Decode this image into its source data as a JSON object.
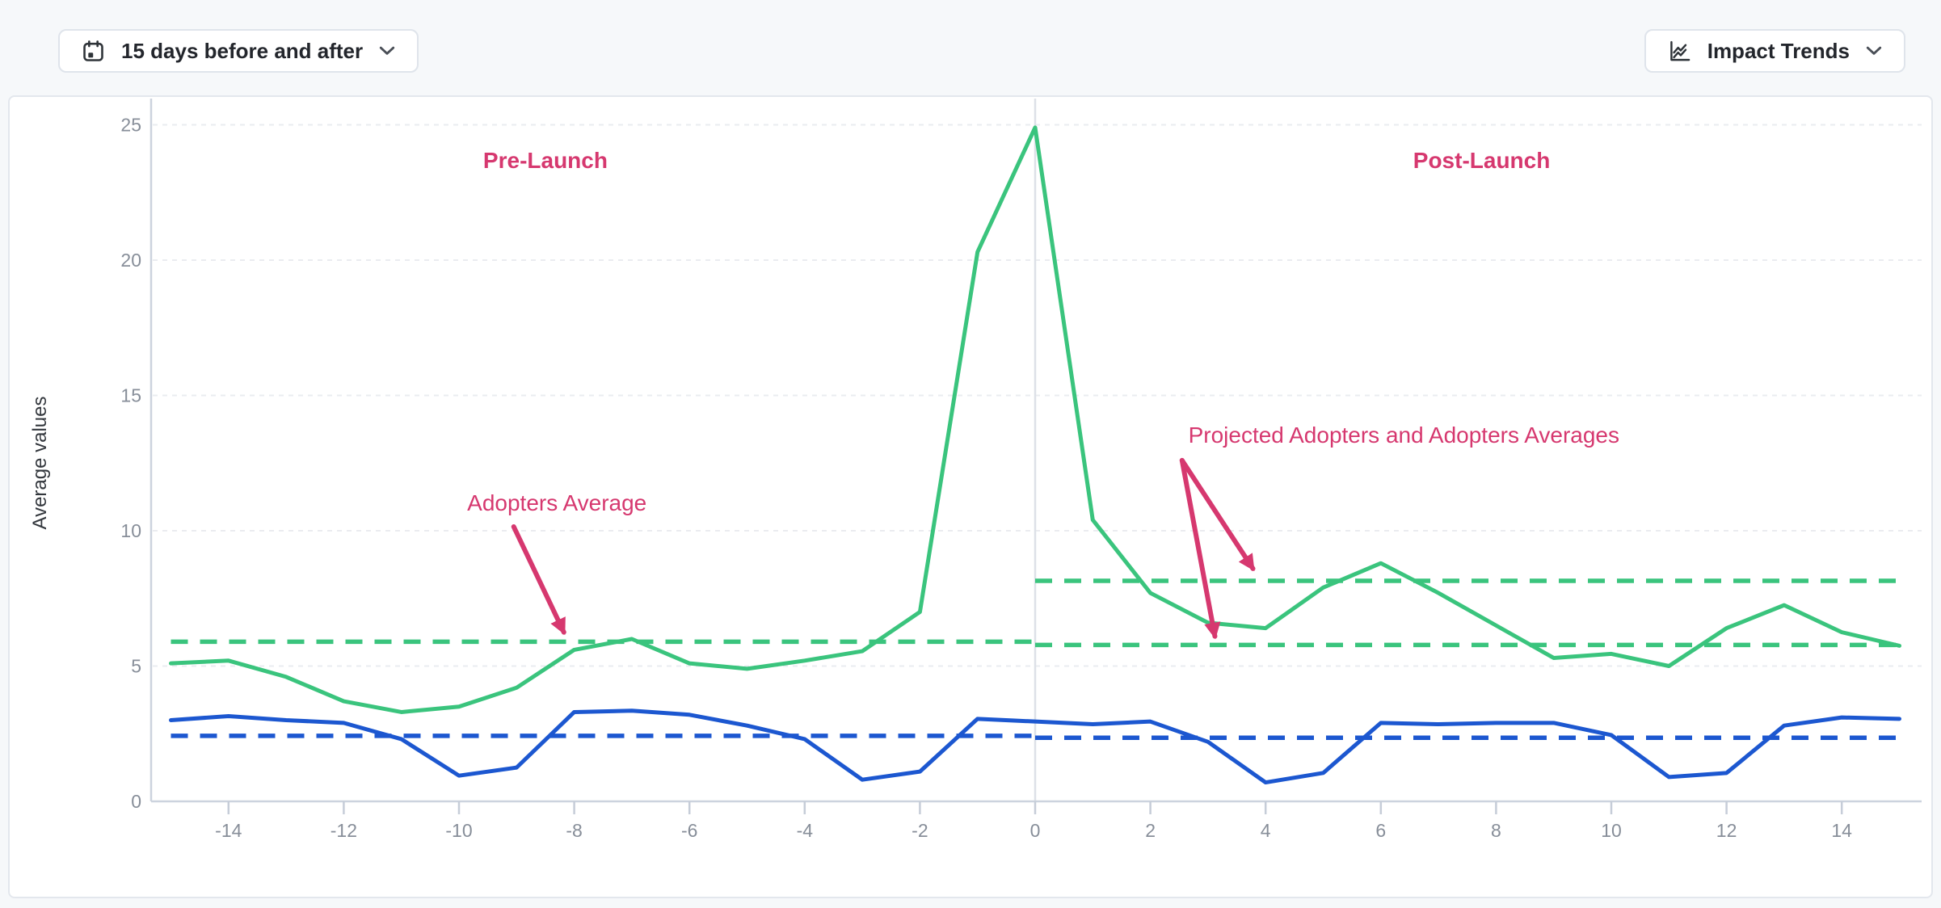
{
  "toolbar": {
    "date_range": {
      "label": "15 days before and after",
      "icon": "calendar-icon"
    },
    "impact_trends": {
      "label": "Impact Trends",
      "icon": "line-chart-icon"
    }
  },
  "chart": {
    "ylabel": "Average values",
    "y_ticks": [
      0,
      5,
      10,
      15,
      20,
      25
    ],
    "x_ticks": [
      -14,
      -12,
      -10,
      -8,
      -6,
      -4,
      -2,
      0,
      2,
      4,
      6,
      8,
      10,
      12,
      14
    ],
    "colors": {
      "green": "#3ac47d",
      "blue": "#1c57d0",
      "annotation_pink": "#d6386f",
      "grid": "#eaecf0",
      "axis": "#ccd3de",
      "tick": "#c6cdd8",
      "launch_line": "#dde1e7",
      "tick_text": "#878e99",
      "axis_title_text": "#33373d"
    }
  },
  "chart_data": {
    "type": "line",
    "title": "",
    "xlabel": "",
    "ylabel": "Average values",
    "xlim": [
      -15,
      15
    ],
    "ylim": [
      0,
      25
    ],
    "grid": true,
    "legend": "none",
    "launch_day_x": 0,
    "x": [
      -15,
      -14,
      -13,
      -12,
      -11,
      -10,
      -9,
      -8,
      -7,
      -6,
      -5,
      -4,
      -3,
      -2,
      -1,
      0,
      1,
      2,
      3,
      4,
      5,
      6,
      7,
      8,
      9,
      10,
      11,
      12,
      13,
      14,
      15
    ],
    "series": [
      {
        "name": "Adopters",
        "color": "#3ac47d",
        "style": "solid",
        "values": [
          5.1,
          5.2,
          4.6,
          3.7,
          3.3,
          3.5,
          4.2,
          5.6,
          6.0,
          5.1,
          4.9,
          5.2,
          5.55,
          7.0,
          20.3,
          24.9,
          10.4,
          7.7,
          6.6,
          6.4,
          7.9,
          8.8,
          7.7,
          6.5,
          5.3,
          5.45,
          5.0,
          6.4,
          7.25,
          6.25,
          5.75
        ]
      },
      {
        "name": "Projected Adopters",
        "color": "#1c57d0",
        "style": "solid",
        "values": [
          3.0,
          3.15,
          3.0,
          2.9,
          2.3,
          0.95,
          1.25,
          3.3,
          3.35,
          3.2,
          2.8,
          2.3,
          0.8,
          1.1,
          3.05,
          2.95,
          2.85,
          2.95,
          2.2,
          0.7,
          1.05,
          2.9,
          2.85,
          2.9,
          2.9,
          2.45,
          0.9,
          1.05,
          2.8,
          3.1,
          3.05
        ]
      }
    ],
    "reference_lines": [
      {
        "id": "adopters-average-pre",
        "color": "#3ac47d",
        "style": "dashed",
        "value": 5.9,
        "x_from": -15,
        "x_to": 0
      },
      {
        "id": "adopters-average-post",
        "color": "#3ac47d",
        "style": "dashed",
        "value": 5.78,
        "x_from": 0,
        "x_to": 15
      },
      {
        "id": "projected-adopters-average-post",
        "color": "#3ac47d",
        "style": "dashed",
        "value": 8.15,
        "x_from": 0,
        "x_to": 15
      },
      {
        "id": "blue-average-pre",
        "color": "#1c57d0",
        "style": "dashed",
        "value": 2.42,
        "x_from": -15,
        "x_to": 0
      },
      {
        "id": "blue-average-post",
        "color": "#1c57d0",
        "style": "dashed",
        "value": 2.35,
        "x_from": 0,
        "x_to": 15
      }
    ],
    "annotations": [
      {
        "id": "pre-launch-label",
        "text": "Pre-Launch",
        "x": -8.5,
        "y": 23.7,
        "bold": true,
        "arrows": []
      },
      {
        "id": "post-launch-label",
        "text": "Post-Launch",
        "x": 7.75,
        "y": 23.7,
        "bold": true,
        "arrows": []
      },
      {
        "id": "adopters-average-label",
        "text": "Adopters Average",
        "x": -8.3,
        "y": 11.05,
        "bold": false,
        "arrows": [
          {
            "x1": -9.05,
            "y1": 10.15,
            "x2": -8.18,
            "y2": 6.25
          }
        ]
      },
      {
        "id": "projected-adopters-label",
        "text": "Projected Adopters and Adopters Averages",
        "x": 6.4,
        "y": 13.55,
        "bold": false,
        "arrows": [
          {
            "x1": 2.55,
            "y1": 12.6,
            "x2": 3.78,
            "y2": 8.6
          },
          {
            "x1": 2.55,
            "y1": 12.6,
            "x2": 3.12,
            "y2": 6.1
          }
        ]
      }
    ]
  }
}
